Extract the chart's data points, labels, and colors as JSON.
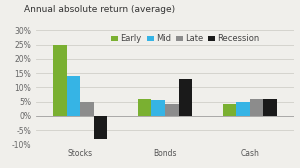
{
  "title": "Annual absolute return (average)",
  "categories": [
    "Stocks",
    "Bonds",
    "Cash"
  ],
  "series": {
    "Early": [
      25,
      6,
      4
    ],
    "Mid": [
      14,
      5.5,
      5
    ],
    "Late": [
      5,
      4,
      6
    ],
    "Recession": [
      -8,
      13,
      6
    ]
  },
  "colors": {
    "Early": "#7ab031",
    "Mid": "#36b4e5",
    "Late": "#8c8c8c",
    "Recession": "#1a1a1a"
  },
  "ylim": [
    -10,
    30
  ],
  "yticks": [
    -10,
    -5,
    0,
    5,
    10,
    15,
    20,
    25,
    30
  ],
  "background_color": "#f0efeb",
  "title_fontsize": 6.5,
  "legend_fontsize": 6.0,
  "tick_fontsize": 5.5
}
